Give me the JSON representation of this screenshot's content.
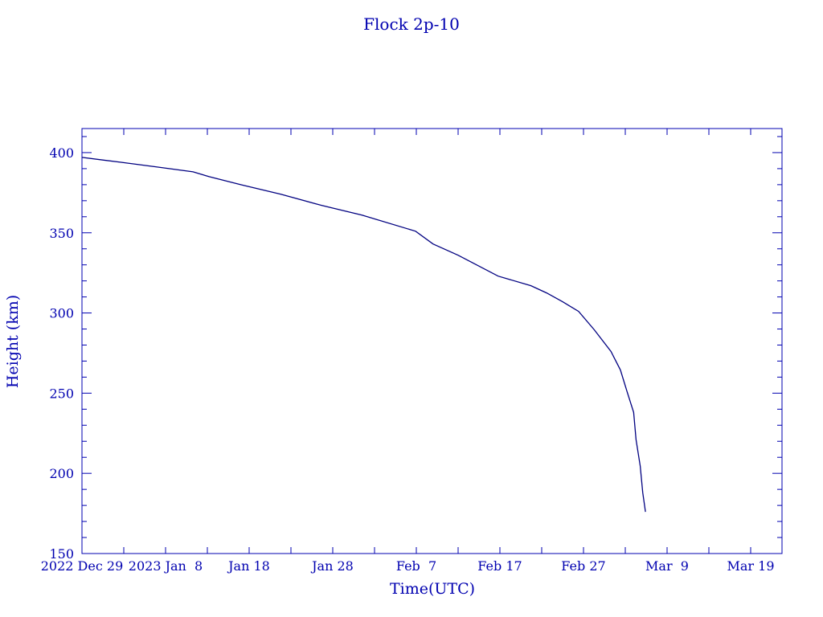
{
  "chart_data": {
    "type": "line",
    "title": "Flock 2p-10",
    "xlabel": "Time(UTC)",
    "ylabel": "Height (km)",
    "xlim": [
      "2022-12-29T00:00Z",
      "2023-03-22T18:00Z"
    ],
    "ylim": [
      150,
      415
    ],
    "x_ticks": [
      {
        "date": "2022-12-29T00:00Z",
        "label": "2022 Dec 29"
      },
      {
        "date": "2023-01-08T00:00Z",
        "label": "2023 Jan  8"
      },
      {
        "date": "2023-01-18T00:00Z",
        "label": "Jan 18"
      },
      {
        "date": "2023-01-28T00:00Z",
        "label": "Jan 28"
      },
      {
        "date": "2023-02-07T00:00Z",
        "label": "Feb  7"
      },
      {
        "date": "2023-02-17T00:00Z",
        "label": "Feb 17"
      },
      {
        "date": "2023-02-27T00:00Z",
        "label": "Feb 27"
      },
      {
        "date": "2023-03-09T00:00Z",
        "label": "Mar  9"
      },
      {
        "date": "2023-03-19T00:00Z",
        "label": "Mar 19"
      }
    ],
    "y_ticks": [
      150,
      200,
      250,
      300,
      350,
      400
    ],
    "grid": false,
    "colors": {
      "axes": "#0000b0",
      "line": "#000080"
    },
    "series": [
      {
        "x": [
          "2022-12-29T00:00Z",
          "2023-01-02T14:00Z",
          "2023-01-07T00:00Z",
          "2023-01-11T07:00Z",
          "2023-01-13T05:00Z",
          "2023-01-17T00:00Z",
          "2023-01-21T19:00Z",
          "2023-01-26T17:00Z",
          "2023-01-31T12:00Z",
          "2023-02-06T22:00Z",
          "2023-02-09T00:00Z",
          "2023-02-12T00:00Z",
          "2023-02-16T19:00Z",
          "2023-02-20T17:00Z",
          "2023-02-22T14:00Z",
          "2023-02-24T12:00Z",
          "2023-02-26T10:00Z",
          "2023-02-28T07:00Z",
          "2023-03-02T07:00Z",
          "2023-03-03T10:00Z",
          "2023-03-04T05:00Z",
          "2023-03-05T00:00Z",
          "2023-03-05T07:00Z",
          "2023-03-05T19:00Z",
          "2023-03-06T02:00Z",
          "2023-03-06T10:00Z"
        ],
        "y": [
          397,
          394,
          391,
          388,
          385,
          380,
          374,
          367,
          361,
          351,
          343,
          336,
          323,
          317,
          312.5,
          307,
          301,
          289.5,
          276,
          264.5,
          251,
          238,
          221,
          204.5,
          188,
          176
        ]
      }
    ]
  }
}
